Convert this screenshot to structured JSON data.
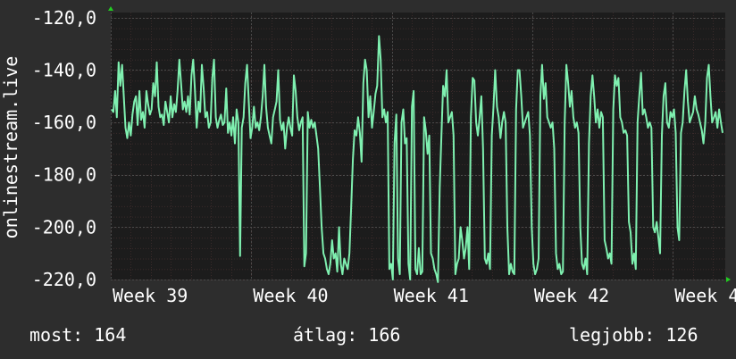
{
  "chart_data": {
    "type": "line",
    "ylabel": "onlinestream.live",
    "y_ticks": [
      "-120,0",
      "-140,0",
      "-160,0",
      "-180,0",
      "-200,0",
      "-220,0"
    ],
    "ylim": [
      -220,
      -118
    ],
    "x_ticks": [
      "Week 39",
      "Week 40",
      "Week 41",
      "Week 42",
      "Week 4"
    ],
    "grid": true,
    "colors": {
      "background": "#2d2d2d",
      "plot_area": "#1c1c1c",
      "line": "#7ff0b0",
      "grid": "#4a4a4a",
      "grid_minor": "#3a2a2a",
      "axis_arrow": "#22cc22"
    },
    "series": [
      {
        "values": [
          -155,
          -156,
          -148,
          -158,
          -137,
          -146,
          -138,
          -150,
          -162,
          -166,
          -160,
          -165,
          -157,
          -152,
          -150,
          -161,
          -148,
          -159,
          -156,
          -162,
          -148,
          -153,
          -157,
          -155,
          -145,
          -150,
          -137,
          -154,
          -158,
          -157,
          -161,
          -152,
          -156,
          -160,
          -150,
          -158,
          -153,
          -156,
          -148,
          -136,
          -145,
          -155,
          -152,
          -156,
          -150,
          -157,
          -142,
          -136,
          -148,
          -162,
          -152,
          -156,
          -138,
          -147,
          -158,
          -156,
          -162,
          -160,
          -143,
          -136,
          -158,
          -162,
          -159,
          -157,
          -161,
          -160,
          -147,
          -164,
          -160,
          -165,
          -158,
          -168,
          -155,
          -160,
          -211,
          -162,
          -158,
          -145,
          -138,
          -152,
          -166,
          -162,
          -154,
          -162,
          -160,
          -163,
          -158,
          -150,
          -138,
          -154,
          -162,
          -165,
          -168,
          -158,
          -155,
          -152,
          -140,
          -159,
          -163,
          -160,
          -170,
          -162,
          -158,
          -162,
          -165,
          -142,
          -148,
          -158,
          -163,
          -160,
          -158,
          -215,
          -210,
          -156,
          -162,
          -159,
          -162,
          -160,
          -165,
          -170,
          -185,
          -200,
          -210,
          -212,
          -216,
          -218,
          -214,
          -205,
          -212,
          -210,
          -217,
          -200,
          -214,
          -218,
          -212,
          -214,
          -216,
          -210,
          -192,
          -174,
          -163,
          -165,
          -158,
          -164,
          -175,
          -145,
          -136,
          -140,
          -158,
          -150,
          -162,
          -156,
          -149,
          -146,
          -127,
          -136,
          -158,
          -155,
          -160,
          -156,
          -216,
          -214,
          -220,
          -168,
          -157,
          -212,
          -218,
          -160,
          -155,
          -168,
          -166,
          -214,
          -220,
          -154,
          -148,
          -216,
          -218,
          -208,
          -218,
          -217,
          -158,
          -163,
          -172,
          -165,
          -210,
          -212,
          -216,
          -218,
          -221,
          -185,
          -165,
          -146,
          -150,
          -140,
          -160,
          -158,
          -156,
          -165,
          -218,
          -214,
          -212,
          -200,
          -205,
          -212,
          -208,
          -200,
          -216,
          -158,
          -143,
          -144,
          -160,
          -165,
          -158,
          -150,
          -170,
          -212,
          -214,
          -210,
          -216,
          -165,
          -154,
          -140,
          -154,
          -158,
          -166,
          -160,
          -156,
          -160,
          -200,
          -218,
          -214,
          -217,
          -218,
          -155,
          -140,
          -140,
          -150,
          -162,
          -160,
          -158,
          -156,
          -165,
          -200,
          -214,
          -218,
          -216,
          -212,
          -150,
          -138,
          -151,
          -145,
          -158,
          -160,
          -162,
          -160,
          -170,
          -210,
          -216,
          -214,
          -218,
          -217,
          -160,
          -138,
          -145,
          -154,
          -148,
          -158,
          -162,
          -160,
          -164,
          -200,
          -214,
          -216,
          -212,
          -218,
          -168,
          -150,
          -142,
          -150,
          -160,
          -155,
          -162,
          -156,
          -158,
          -205,
          -208,
          -212,
          -210,
          -214,
          -155,
          -142,
          -146,
          -143,
          -158,
          -160,
          -164,
          -163,
          -165,
          -198,
          -202,
          -214,
          -210,
          -216,
          -160,
          -150,
          -141,
          -157,
          -155,
          -158,
          -162,
          -160,
          -162,
          -200,
          -202,
          -198,
          -204,
          -210,
          -165,
          -150,
          -145,
          -160,
          -162,
          -156,
          -158,
          -155,
          -164,
          -200,
          -205,
          -164,
          -160,
          -148,
          -140,
          -152,
          -160,
          -158,
          -156,
          -150,
          -155,
          -157,
          -160,
          -163,
          -168,
          -160,
          -143,
          -138,
          -150,
          -160,
          -158,
          -156,
          -162,
          -155,
          -160,
          -164
        ]
      }
    ]
  },
  "stats": {
    "current": "most: 164",
    "average": "átlag: 166",
    "best": "legjobb: 126"
  }
}
